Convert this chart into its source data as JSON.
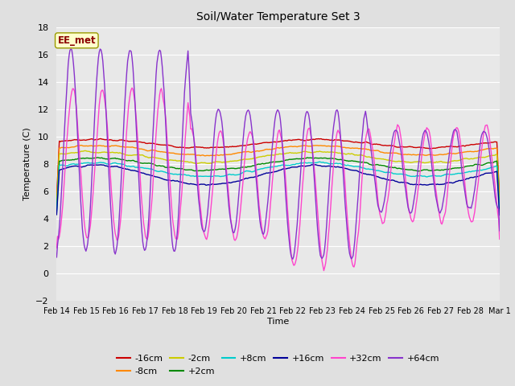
{
  "title": "Soil/Water Temperature Set 3",
  "xlabel": "Time",
  "ylabel": "Temperature (C)",
  "ylim": [
    -2,
    18
  ],
  "yticks": [
    -2,
    0,
    2,
    4,
    6,
    8,
    10,
    12,
    14,
    16,
    18
  ],
  "date_labels": [
    "Feb 14",
    "Feb 15",
    "Feb 16",
    "Feb 17",
    "Feb 18",
    "Feb 19",
    "Feb 20",
    "Feb 21",
    "Feb 22",
    "Feb 23",
    "Feb 24",
    "Feb 25",
    "Feb 26",
    "Feb 27",
    "Feb 28",
    "Mar 1"
  ],
  "colors": {
    "-16cm": "#cc0000",
    "-8cm": "#ff8800",
    "-2cm": "#cccc00",
    "+2cm": "#008800",
    "+8cm": "#00cccc",
    "+16cm": "#000099",
    "+32cm": "#ff44cc",
    "+64cm": "#8833cc"
  },
  "annotation_text": "EE_met",
  "background_color": "#e0e0e0",
  "plot_bg_color": "#e8e8e8",
  "grid_color": "#ffffff",
  "linewidth": 1.0,
  "n_days": 15,
  "n_points": 500
}
